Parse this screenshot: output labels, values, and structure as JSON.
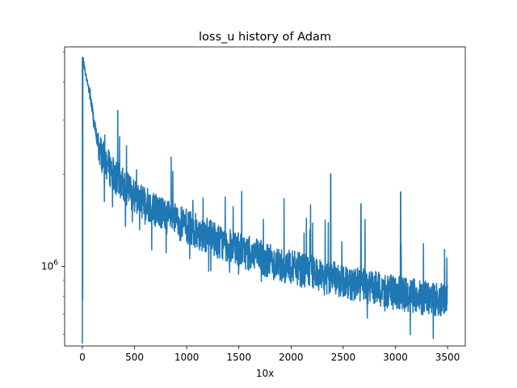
{
  "chart_data": {
    "type": "line",
    "title": "loss_u history of Adam",
    "xlabel": "10x",
    "ylabel": "",
    "yscale": "log",
    "xlim": [
      -170,
      3670
    ],
    "ylim": [
      550000,
      5200000
    ],
    "x_ticks": [
      0,
      500,
      1000,
      1500,
      2000,
      2500,
      3000,
      3500
    ],
    "x_tick_labels": [
      "0",
      "500",
      "1000",
      "1500",
      "2000",
      "2500",
      "3000",
      "3500"
    ],
    "y_ticks": [
      1000000
    ],
    "y_tick_labels": [
      "10^6"
    ],
    "grid": false,
    "legend": "none",
    "line_color": "#1f77b4",
    "series": [
      {
        "name": "",
        "x": [
          0,
          0,
          0,
          5,
          10,
          20,
          40,
          70,
          100,
          130,
          160,
          200,
          250,
          300,
          400,
          500,
          600,
          700,
          800,
          900,
          1000,
          1100,
          1200,
          1300,
          1400,
          1500,
          1600,
          1700,
          1800,
          1900,
          2000,
          2100,
          2200,
          2300,
          2400,
          2500,
          2600,
          2700,
          2800,
          2900,
          3000,
          3100,
          3200,
          3300,
          3400,
          3500
        ],
        "y": [
          560000,
          4650000,
          4800000,
          4800000,
          4700000,
          4450000,
          4100000,
          3700000,
          3150000,
          2700000,
          2450000,
          2270000,
          2130000,
          2000000,
          1850000,
          1720000,
          1620000,
          1550000,
          1470000,
          1410000,
          1360000,
          1310000,
          1270000,
          1220000,
          1180000,
          1140000,
          1110000,
          1080000,
          1050000,
          1020000,
          1000000,
          980000,
          960000,
          940000,
          920000,
          900000,
          885000,
          870000,
          855000,
          840000,
          825000,
          815000,
          805000,
          795000,
          785000,
          775000
        ],
        "noise": "high-frequency oscillation of roughly ±15% around the trend after x≈100, with occasional spikes up to ~2.0e6 near x≈2380"
      }
    ]
  }
}
